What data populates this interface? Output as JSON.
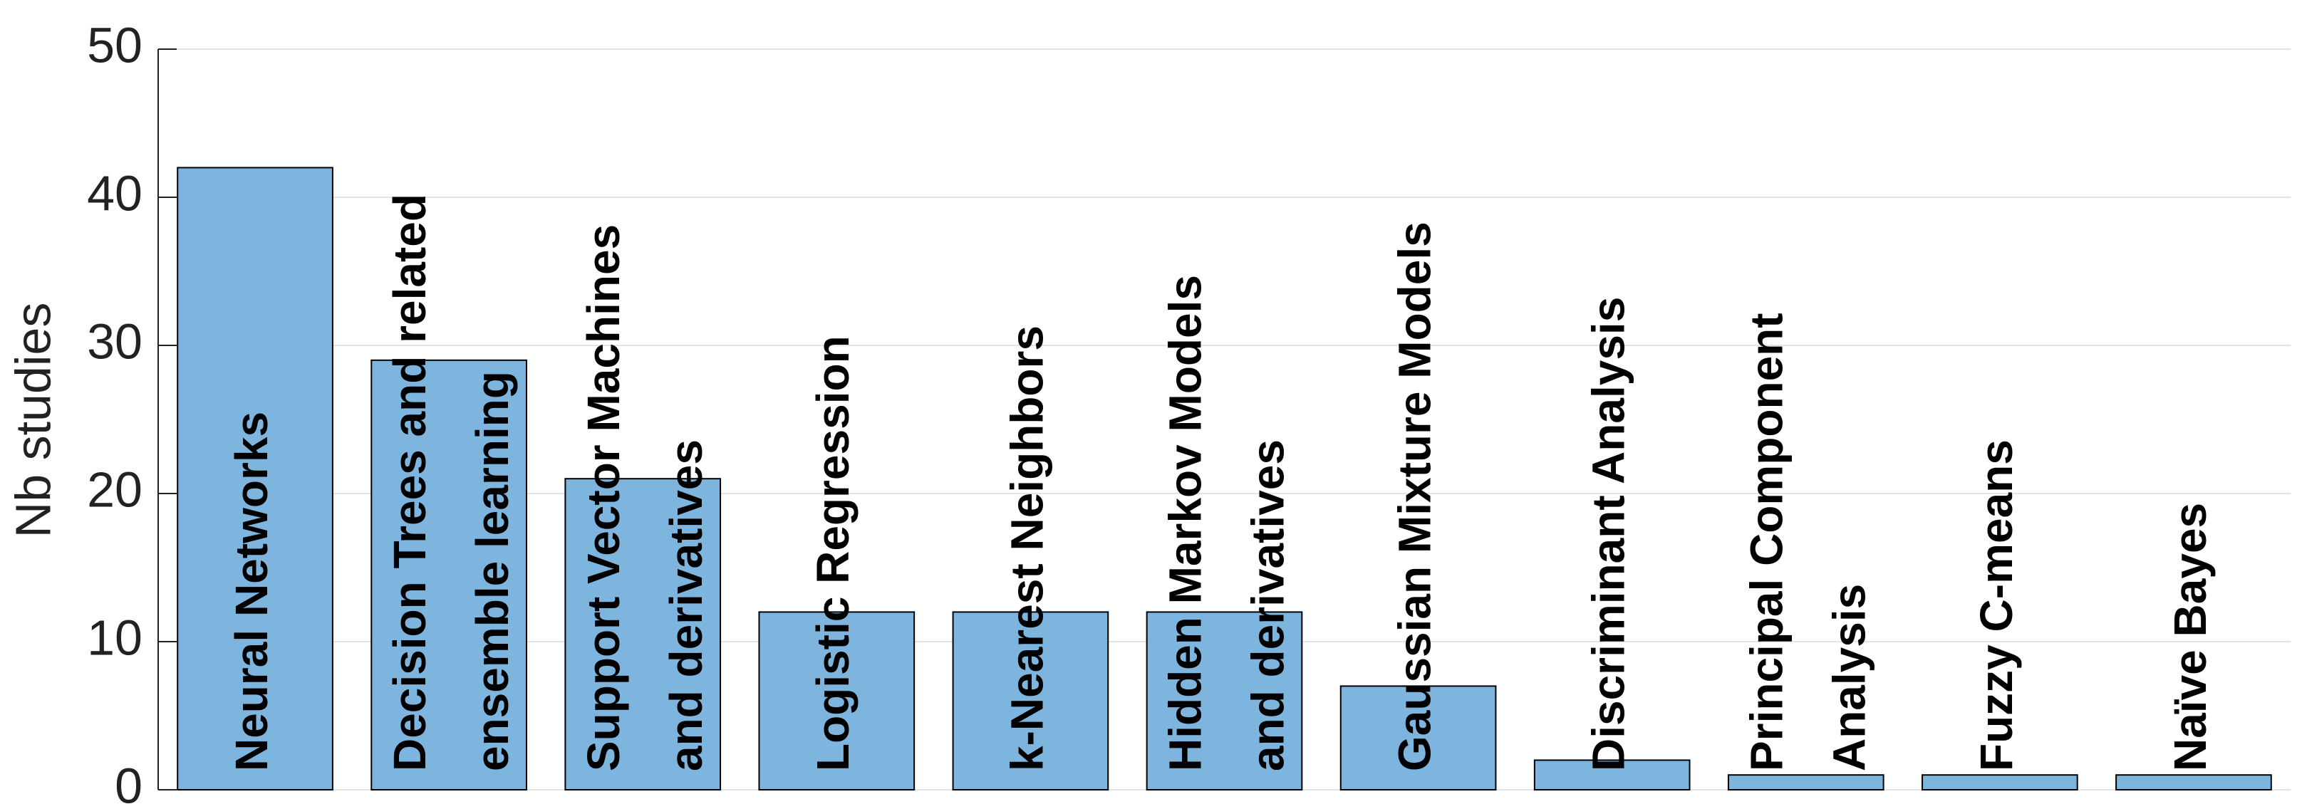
{
  "chart_data": {
    "type": "bar",
    "y_label": "Nb studies",
    "categories": [
      [
        "Neural Networks"
      ],
      [
        "Decision Trees and related",
        "ensemble learning"
      ],
      [
        "Support Vector Machines",
        "and derivatives"
      ],
      [
        "Logistic Regression"
      ],
      [
        "k-Nearest Neighbors"
      ],
      [
        "Hidden Markov Models",
        "and derivatives"
      ],
      [
        "Gaussian Mixture Models"
      ],
      [
        "Discriminant Analysis"
      ],
      [
        "Principal Component",
        "Analysis"
      ],
      [
        "Fuzzy C-means"
      ],
      [
        "Naïve Bayes"
      ]
    ],
    "values": [
      42,
      29,
      21,
      12,
      12,
      12,
      7,
      2,
      1,
      1,
      1
    ],
    "color": "#7eb5de",
    "ylim": [
      0,
      50
    ],
    "yticks": [
      0,
      10,
      20,
      30,
      40,
      50
    ],
    "grid": true
  }
}
